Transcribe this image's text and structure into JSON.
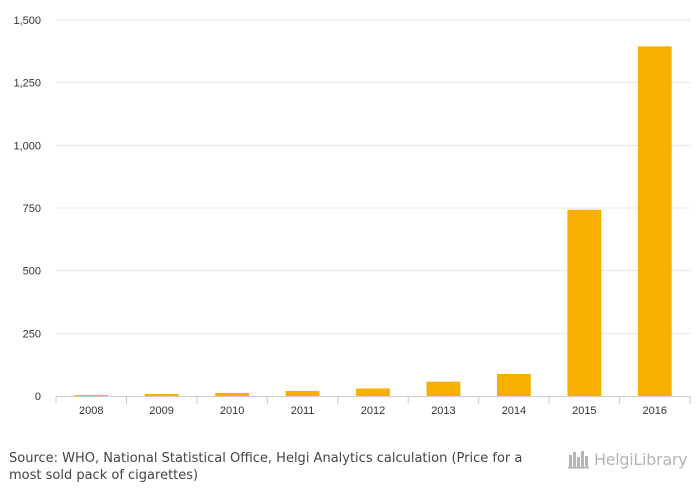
{
  "chart_data": {
    "type": "bar",
    "categories": [
      "2008",
      "2009",
      "2010",
      "2011",
      "2012",
      "2013",
      "2014",
      "2015",
      "2016"
    ],
    "values": [
      4,
      8,
      12,
      20,
      30,
      57,
      88,
      743,
      1395
    ],
    "ylim": [
      0,
      1500
    ],
    "yticks": [
      0,
      250,
      500,
      750,
      1000,
      1250,
      1500
    ],
    "ytick_labels": [
      "0",
      "250",
      "500",
      "750",
      "1,000",
      "1,250",
      "1,500"
    ],
    "bar_color": "#F7B000",
    "grid": true,
    "title": "",
    "xlabel": "",
    "ylabel": ""
  },
  "footer": {
    "source_label": "Source:",
    "source_text": "WHO, National Statistical Office, Helgi Analytics calculation (Price for a most sold pack of cigarettes)",
    "logo_text": "HelgiLibrary"
  }
}
